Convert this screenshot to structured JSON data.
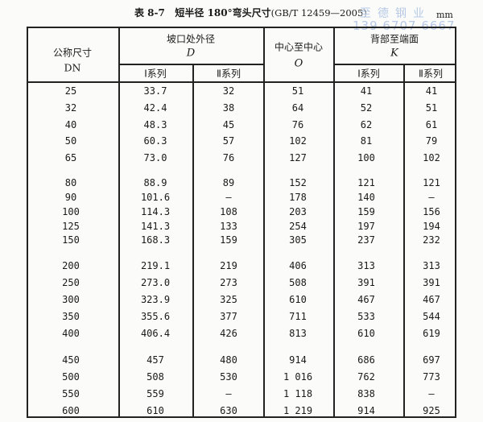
{
  "caption": {
    "label": "表 8-7",
    "title": "短半径 180°弯头尺寸",
    "standard": "(GB/T 12459—2005)",
    "unit": "mm"
  },
  "watermark": {
    "company": "至德钢业",
    "phone": "139 6707 6667"
  },
  "headers": {
    "dn": "公称尺寸",
    "dn_sym": "DN",
    "d": "坡口处外径",
    "d_sym": "D",
    "o": "中心至中心",
    "o_sym": "O",
    "k": "背部至端面",
    "k_sym": "K",
    "series1": "Ⅰ系列",
    "series2": "Ⅱ系列"
  },
  "rows": [
    [
      "25",
      "33.7",
      "32",
      "51",
      "41",
      "41"
    ],
    [
      "32",
      "42.4",
      "38",
      "64",
      "52",
      "51"
    ],
    [
      "40",
      "48.3",
      "45",
      "76",
      "62",
      "61"
    ],
    [
      "50",
      "60.3",
      "57",
      "102",
      "81",
      "79"
    ],
    [
      "65",
      "73.0",
      "76",
      "127",
      "100",
      "102"
    ],
    [
      "80",
      "88.9",
      "89",
      "152",
      "121",
      "121"
    ],
    [
      "90",
      "101.6",
      "—",
      "178",
      "140",
      "—"
    ],
    [
      "100",
      "114.3",
      "108",
      "203",
      "159",
      "156"
    ],
    [
      "125",
      "141.3",
      "133",
      "254",
      "197",
      "194"
    ],
    [
      "150",
      "168.3",
      "159",
      "305",
      "237",
      "232"
    ],
    [
      "200",
      "219.1",
      "219",
      "406",
      "313",
      "313"
    ],
    [
      "250",
      "273.0",
      "273",
      "508",
      "391",
      "391"
    ],
    [
      "300",
      "323.9",
      "325",
      "610",
      "467",
      "467"
    ],
    [
      "350",
      "355.6",
      "377",
      "711",
      "533",
      "544"
    ],
    [
      "400",
      "406.4",
      "426",
      "813",
      "610",
      "619"
    ],
    [
      "450",
      "457",
      "480",
      "914",
      "686",
      "697"
    ],
    [
      "500",
      "508",
      "530",
      "1 016",
      "762",
      "773"
    ],
    [
      "550",
      "559",
      "—",
      "1 118",
      "838",
      "—"
    ],
    [
      "600",
      "610",
      "630",
      "1 219",
      "914",
      "925"
    ]
  ]
}
